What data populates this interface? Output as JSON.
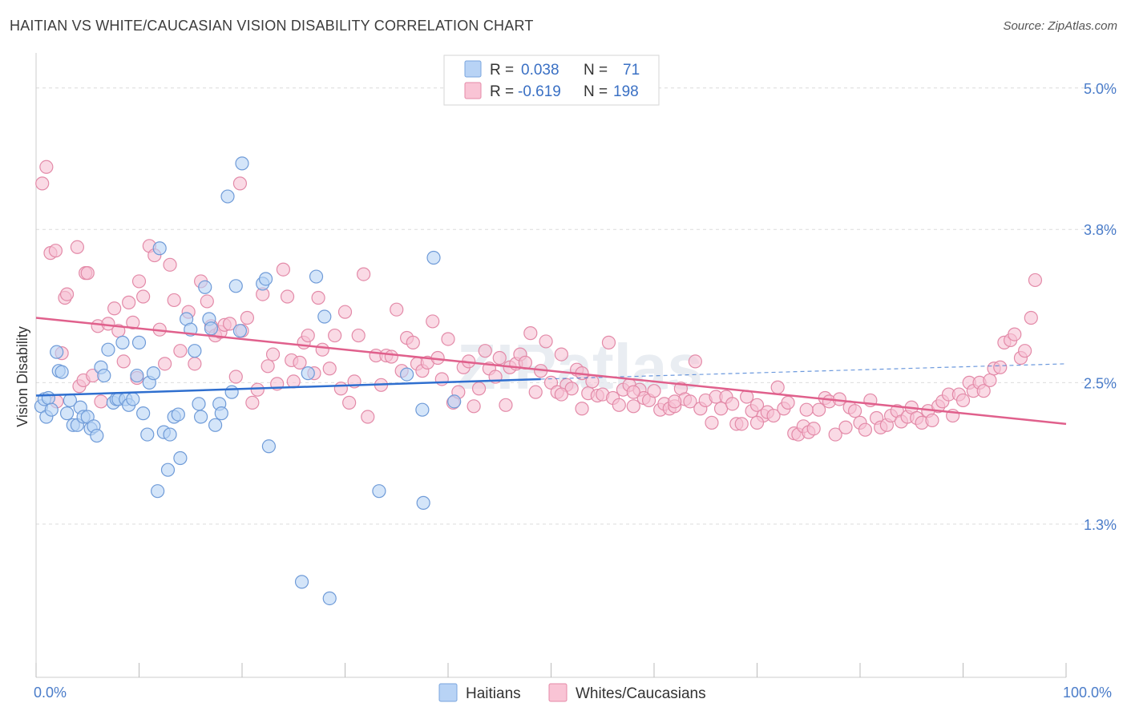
{
  "title": "HAITIAN VS WHITE/CAUCASIAN VISION DISABILITY CORRELATION CHART",
  "source": "Source: ZipAtlas.com",
  "watermark": "ZIPatlas",
  "legend": {
    "r_label": "R =",
    "n_label": "N =",
    "series": [
      {
        "name": "Haitians",
        "r": "0.038",
        "n": "71",
        "fill": "#b8d3f5",
        "stroke": "#7aa6de"
      },
      {
        "name": "Whites/Caucasians",
        "r": "-0.619",
        "n": "198",
        "fill": "#f9c4d5",
        "stroke": "#e58aa8"
      }
    ]
  },
  "colors": {
    "blue_fill": "#b8d3f5",
    "blue_stroke": "#6f9bd8",
    "blue_line": "#2f6fcf",
    "pink_fill": "#f7c2d3",
    "pink_stroke": "#e38aa8",
    "pink_line": "#e0608c",
    "grid": "#dcdcdc",
    "axis_label": "#4a7cc9"
  },
  "chart_data": {
    "type": "scatter",
    "title": "HAITIAN VS WHITE/CAUCASIAN VISION DISABILITY CORRELATION CHART",
    "xlabel": "",
    "ylabel": "Vision Disability",
    "xlim": [
      0,
      100
    ],
    "ylim": [
      0.0,
      5.25
    ],
    "x_tick_labels": [
      "0.0%",
      "100.0%"
    ],
    "y_ticks": [
      1.3,
      2.5,
      3.8,
      5.0
    ],
    "y_tick_labels": [
      "1.3%",
      "2.5%",
      "3.8%",
      "5.0%"
    ],
    "grid": "horizontal dashed",
    "legend_position": "top-center",
    "series": [
      {
        "name": "Haitians",
        "trend": {
          "x0": 0,
          "y0": 2.39,
          "x1": 49,
          "y1": 2.53,
          "dashed_to": [
            100,
            2.66
          ]
        },
        "points": [
          [
            0.5,
            2.3
          ],
          [
            0.8,
            2.36
          ],
          [
            1.0,
            2.21
          ],
          [
            1.2,
            2.37
          ],
          [
            1.5,
            2.27
          ],
          [
            2.0,
            2.76
          ],
          [
            2.2,
            2.6
          ],
          [
            2.5,
            2.59
          ],
          [
            3.0,
            2.24
          ],
          [
            3.3,
            2.35
          ],
          [
            3.6,
            2.14
          ],
          [
            4.0,
            2.14
          ],
          [
            4.3,
            2.29
          ],
          [
            4.6,
            2.21
          ],
          [
            5.0,
            2.21
          ],
          [
            5.3,
            2.11
          ],
          [
            5.6,
            2.13
          ],
          [
            5.9,
            2.05
          ],
          [
            6.3,
            2.63
          ],
          [
            6.6,
            2.56
          ],
          [
            7.0,
            2.78
          ],
          [
            7.5,
            2.33
          ],
          [
            7.8,
            2.36
          ],
          [
            8.0,
            2.36
          ],
          [
            8.4,
            2.84
          ],
          [
            8.7,
            2.36
          ],
          [
            9.0,
            2.31
          ],
          [
            9.4,
            2.36
          ],
          [
            9.8,
            2.56
          ],
          [
            10.0,
            2.84
          ],
          [
            10.4,
            2.24
          ],
          [
            10.8,
            2.06
          ],
          [
            11.0,
            2.5
          ],
          [
            11.4,
            2.58
          ],
          [
            11.8,
            1.58
          ],
          [
            12.0,
            3.64
          ],
          [
            12.4,
            2.08
          ],
          [
            12.8,
            1.76
          ],
          [
            13.0,
            2.06
          ],
          [
            13.4,
            2.21
          ],
          [
            13.8,
            2.23
          ],
          [
            14.0,
            1.86
          ],
          [
            14.6,
            3.04
          ],
          [
            15.0,
            2.95
          ],
          [
            15.4,
            2.77
          ],
          [
            15.8,
            2.32
          ],
          [
            16.0,
            2.21
          ],
          [
            16.4,
            3.31
          ],
          [
            16.8,
            3.04
          ],
          [
            17.0,
            2.96
          ],
          [
            17.4,
            2.14
          ],
          [
            17.8,
            2.32
          ],
          [
            18.0,
            2.24
          ],
          [
            18.6,
            4.08
          ],
          [
            19.0,
            2.42
          ],
          [
            19.4,
            3.32
          ],
          [
            19.8,
            2.94
          ],
          [
            20.0,
            4.36
          ],
          [
            22.0,
            3.34
          ],
          [
            22.3,
            3.38
          ],
          [
            22.6,
            1.96
          ],
          [
            25.8,
            0.81
          ],
          [
            26.4,
            2.58
          ],
          [
            27.2,
            3.4
          ],
          [
            28.0,
            3.06
          ],
          [
            28.5,
            0.67
          ],
          [
            33.3,
            1.58
          ],
          [
            36.0,
            2.57
          ],
          [
            37.5,
            2.27
          ],
          [
            37.6,
            1.48
          ],
          [
            38.6,
            3.56
          ],
          [
            40.6,
            2.34
          ]
        ]
      },
      {
        "name": "Whites/Caucasians",
        "trend": {
          "x0": 0,
          "y0": 3.05,
          "x1": 100,
          "y1": 2.15
        },
        "points": [
          [
            0.6,
            4.19
          ],
          [
            1.0,
            4.33
          ],
          [
            1.4,
            3.6
          ],
          [
            1.9,
            3.62
          ],
          [
            2.0,
            2.34
          ],
          [
            2.5,
            2.75
          ],
          [
            2.8,
            3.22
          ],
          [
            3.0,
            3.25
          ],
          [
            4.0,
            3.65
          ],
          [
            4.2,
            2.47
          ],
          [
            4.6,
            2.52
          ],
          [
            4.8,
            3.43
          ],
          [
            5.0,
            3.43
          ],
          [
            5.5,
            2.56
          ],
          [
            6.0,
            2.98
          ],
          [
            6.3,
            2.34
          ],
          [
            7.0,
            3.0
          ],
          [
            7.6,
            3.13
          ],
          [
            8.0,
            2.94
          ],
          [
            8.5,
            2.68
          ],
          [
            9.0,
            3.18
          ],
          [
            9.4,
            3.01
          ],
          [
            9.8,
            2.54
          ],
          [
            10.0,
            3.36
          ],
          [
            10.4,
            3.23
          ],
          [
            11.0,
            3.66
          ],
          [
            11.5,
            3.58
          ],
          [
            12.0,
            2.95
          ],
          [
            12.5,
            2.66
          ],
          [
            13.0,
            3.5
          ],
          [
            13.4,
            3.2
          ],
          [
            14.0,
            2.77
          ],
          [
            14.8,
            3.1
          ],
          [
            15.4,
            2.66
          ],
          [
            16.0,
            3.36
          ],
          [
            16.6,
            3.19
          ],
          [
            17.0,
            2.98
          ],
          [
            17.4,
            2.9
          ],
          [
            17.9,
            2.93
          ],
          [
            18.3,
            2.99
          ],
          [
            18.8,
            3.0
          ],
          [
            19.4,
            2.55
          ],
          [
            19.8,
            4.19
          ],
          [
            20.0,
            2.94
          ],
          [
            20.5,
            3.05
          ],
          [
            21.0,
            2.33
          ],
          [
            21.5,
            2.44
          ],
          [
            22.0,
            3.25
          ],
          [
            22.5,
            2.64
          ],
          [
            23.0,
            2.74
          ],
          [
            23.4,
            2.49
          ],
          [
            24.0,
            3.46
          ],
          [
            24.4,
            3.23
          ],
          [
            24.8,
            2.69
          ],
          [
            25.0,
            2.51
          ],
          [
            25.6,
            2.67
          ],
          [
            26.0,
            2.84
          ],
          [
            26.4,
            2.9
          ],
          [
            27.0,
            2.58
          ],
          [
            27.4,
            3.22
          ],
          [
            27.8,
            2.78
          ],
          [
            28.5,
            2.62
          ],
          [
            29.0,
            2.9
          ],
          [
            29.6,
            2.45
          ],
          [
            30.0,
            3.1
          ],
          [
            30.4,
            2.33
          ],
          [
            30.9,
            2.51
          ],
          [
            31.3,
            2.9
          ],
          [
            31.8,
            3.42
          ],
          [
            32.2,
            2.21
          ],
          [
            33.0,
            2.73
          ],
          [
            33.5,
            2.48
          ],
          [
            34.0,
            2.73
          ],
          [
            34.5,
            2.72
          ],
          [
            35.0,
            3.12
          ],
          [
            35.5,
            2.6
          ],
          [
            36.0,
            2.88
          ],
          [
            36.6,
            2.84
          ],
          [
            37.0,
            2.66
          ],
          [
            37.5,
            2.6
          ],
          [
            38.0,
            2.67
          ],
          [
            38.5,
            3.02
          ],
          [
            39.0,
            2.71
          ],
          [
            39.4,
            2.53
          ],
          [
            40.0,
            2.87
          ],
          [
            40.5,
            2.33
          ],
          [
            41.0,
            2.42
          ],
          [
            41.5,
            2.63
          ],
          [
            42.0,
            2.68
          ],
          [
            42.5,
            2.3
          ],
          [
            43.0,
            2.45
          ],
          [
            43.6,
            2.77
          ],
          [
            44.0,
            2.62
          ],
          [
            44.6,
            2.55
          ],
          [
            45.0,
            2.71
          ],
          [
            45.6,
            2.31
          ],
          [
            46.0,
            2.63
          ],
          [
            46.6,
            2.66
          ],
          [
            47.0,
            2.74
          ],
          [
            47.5,
            2.67
          ],
          [
            48.0,
            2.92
          ],
          [
            48.5,
            2.42
          ],
          [
            49.0,
            2.6
          ],
          [
            49.5,
            2.85
          ],
          [
            50.0,
            2.5
          ],
          [
            50.6,
            2.42
          ],
          [
            51.0,
            2.74
          ],
          [
            51.5,
            2.48
          ],
          [
            52.0,
            2.45
          ],
          [
            52.5,
            2.61
          ],
          [
            53.0,
            2.28
          ],
          [
            53.6,
            2.41
          ],
          [
            54.0,
            2.51
          ],
          [
            54.5,
            2.39
          ],
          [
            55.0,
            2.4
          ],
          [
            55.6,
            2.84
          ],
          [
            56.0,
            2.37
          ],
          [
            56.6,
            2.31
          ],
          [
            57.0,
            2.44
          ],
          [
            57.6,
            2.48
          ],
          [
            58.0,
            2.3
          ],
          [
            58.6,
            2.44
          ],
          [
            59.0,
            2.37
          ],
          [
            59.5,
            2.35
          ],
          [
            60.0,
            2.43
          ],
          [
            60.6,
            2.27
          ],
          [
            61.0,
            2.32
          ],
          [
            61.5,
            2.28
          ],
          [
            62.0,
            2.3
          ],
          [
            62.6,
            2.45
          ],
          [
            63.0,
            2.36
          ],
          [
            63.5,
            2.34
          ],
          [
            64.0,
            2.68
          ],
          [
            64.5,
            2.28
          ],
          [
            65.0,
            2.35
          ],
          [
            65.6,
            2.16
          ],
          [
            66.0,
            2.38
          ],
          [
            66.5,
            2.28
          ],
          [
            67.0,
            2.38
          ],
          [
            67.6,
            2.32
          ],
          [
            68.0,
            2.15
          ],
          [
            68.5,
            2.15
          ],
          [
            69.0,
            2.38
          ],
          [
            69.5,
            2.26
          ],
          [
            70.0,
            2.31
          ],
          [
            70.6,
            2.22
          ],
          [
            71.0,
            2.25
          ],
          [
            71.6,
            2.22
          ],
          [
            72.0,
            2.46
          ],
          [
            72.6,
            2.28
          ],
          [
            73.0,
            2.33
          ],
          [
            73.6,
            2.07
          ],
          [
            74.0,
            2.06
          ],
          [
            74.5,
            2.13
          ],
          [
            75.0,
            2.08
          ],
          [
            75.5,
            2.11
          ],
          [
            76.0,
            2.27
          ],
          [
            76.6,
            2.37
          ],
          [
            77.0,
            2.34
          ],
          [
            77.6,
            2.06
          ],
          [
            78.0,
            2.36
          ],
          [
            78.6,
            2.12
          ],
          [
            79.0,
            2.29
          ],
          [
            79.5,
            2.26
          ],
          [
            80.0,
            2.16
          ],
          [
            80.5,
            2.1
          ],
          [
            81.0,
            2.35
          ],
          [
            81.6,
            2.2
          ],
          [
            82.0,
            2.12
          ],
          [
            82.6,
            2.14
          ],
          [
            83.0,
            2.22
          ],
          [
            83.6,
            2.26
          ],
          [
            84.0,
            2.17
          ],
          [
            84.6,
            2.21
          ],
          [
            85.0,
            2.29
          ],
          [
            85.5,
            2.2
          ],
          [
            86.0,
            2.16
          ],
          [
            86.6,
            2.26
          ],
          [
            87.0,
            2.18
          ],
          [
            87.6,
            2.3
          ],
          [
            88.0,
            2.34
          ],
          [
            88.6,
            2.4
          ],
          [
            89.0,
            2.22
          ],
          [
            89.6,
            2.4
          ],
          [
            90.0,
            2.35
          ],
          [
            90.6,
            2.5
          ],
          [
            91.0,
            2.43
          ],
          [
            91.6,
            2.5
          ],
          [
            92.0,
            2.43
          ],
          [
            92.6,
            2.52
          ],
          [
            93.0,
            2.62
          ],
          [
            93.6,
            2.63
          ],
          [
            94.0,
            2.84
          ],
          [
            94.6,
            2.86
          ],
          [
            95.0,
            2.91
          ],
          [
            95.6,
            2.71
          ],
          [
            96.0,
            2.77
          ],
          [
            96.6,
            3.05
          ],
          [
            97.0,
            3.37
          ],
          [
            74.8,
            2.27
          ],
          [
            70.0,
            2.16
          ],
          [
            62.0,
            2.34
          ],
          [
            58.0,
            2.42
          ],
          [
            53.0,
            2.58
          ],
          [
            51.0,
            2.4
          ]
        ]
      }
    ]
  }
}
